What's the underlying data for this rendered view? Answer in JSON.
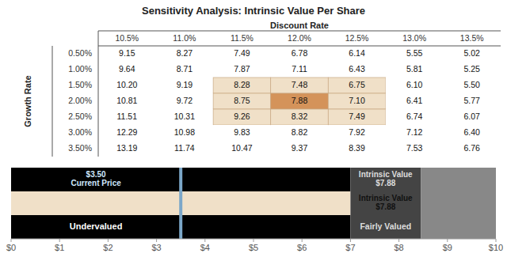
{
  "chart_data": [
    {
      "type": "table",
      "title": "Sensitivity Analysis: Intrinsic Value Per Share",
      "x_label": "Discount Rate",
      "y_label": "Growth Rate",
      "columns": [
        "10.5%",
        "11.0%",
        "11.5%",
        "12.0%",
        "12.5%",
        "13.0%",
        "13.5%"
      ],
      "rows": [
        "0.50%",
        "1.00%",
        "1.50%",
        "2.00%",
        "2.50%",
        "3.00%",
        "3.50%"
      ],
      "cells": [
        [
          9.15,
          8.27,
          7.49,
          6.78,
          6.14,
          5.55,
          5.02
        ],
        [
          9.64,
          8.71,
          7.87,
          7.11,
          6.43,
          5.81,
          5.25
        ],
        [
          10.2,
          9.19,
          8.28,
          7.48,
          6.75,
          6.1,
          5.5
        ],
        [
          10.81,
          9.72,
          8.75,
          7.88,
          7.1,
          6.41,
          5.77
        ],
        [
          11.51,
          10.31,
          9.26,
          8.32,
          7.49,
          6.74,
          6.07
        ],
        [
          12.29,
          10.98,
          9.83,
          8.82,
          7.92,
          7.12,
          6.4
        ],
        [
          13.19,
          11.74,
          10.47,
          9.37,
          8.39,
          7.53,
          6.76
        ]
      ],
      "value_labels": [
        [
          "9.15",
          "8.27",
          "7.49",
          "6.78",
          "6.14",
          "5.55",
          "5.02"
        ],
        [
          "9.64",
          "8.71",
          "7.87",
          "7.11",
          "6.43",
          "5.81",
          "5.25"
        ],
        [
          "10.20",
          "9.19",
          "8.28",
          "7.48",
          "6.75",
          "6.10",
          "5.50"
        ],
        [
          "10.81",
          "9.72",
          "8.75",
          "7.88",
          "7.10",
          "6.41",
          "5.77"
        ],
        [
          "11.51",
          "10.31",
          "9.26",
          "8.32",
          "7.49",
          "6.74",
          "6.07"
        ],
        [
          "12.29",
          "10.98",
          "9.83",
          "8.82",
          "7.92",
          "7.12",
          "6.40"
        ],
        [
          "13.19",
          "11.74",
          "10.47",
          "9.37",
          "8.39",
          "7.53",
          "6.76"
        ]
      ],
      "colors": [
        [
          "#ffffff",
          "#ffffff",
          "#ffffff",
          "#ffffff",
          "#ffffff",
          "#ffffff",
          "#ffffff"
        ],
        [
          "#ffffff",
          "#ffffff",
          "#ffffff",
          "#ffffff",
          "#ffffff",
          "#ffffff",
          "#ffffff"
        ],
        [
          "#ffffff",
          "#ffffff",
          "#f0e0c8",
          "#f0e0c8",
          "#f0e0c8",
          "#ffffff",
          "#ffffff"
        ],
        [
          "#ffffff",
          "#ffffff",
          "#f0e0c8",
          "#d4935a",
          "#f0e0c8",
          "#ffffff",
          "#ffffff"
        ],
        [
          "#ffffff",
          "#ffffff",
          "#f0e0c8",
          "#f0e0c8",
          "#f0e0c8",
          "#ffffff",
          "#ffffff"
        ],
        [
          "#ffffff",
          "#ffffff",
          "#ffffff",
          "#ffffff",
          "#ffffff",
          "#ffffff",
          "#ffffff"
        ],
        [
          "#ffffff",
          "#ffffff",
          "#ffffff",
          "#ffffff",
          "#ffffff",
          "#ffffff",
          "#ffffff"
        ]
      ]
    },
    {
      "type": "bar",
      "orientation": "horizontal",
      "stacked": true,
      "categories": [
        null,
        null,
        null
      ],
      "series": [
        {
          "colors": [
            "#000000",
            "#f0e0c8",
            "#000000"
          ],
          "values": [
            7.0,
            7.0,
            7.0
          ]
        },
        {
          "color": "#444444",
          "values": [
            1.45,
            1.45,
            1.45
          ]
        },
        {
          "color": "#888888",
          "values": [
            1.55,
            1.55,
            1.55
          ]
        }
      ],
      "current_price": {
        "value": 3.5,
        "color": "#7ba7c9"
      },
      "annotations": [
        "$3.50\nCurrent Price",
        "Intrinsic Value\n$7.88",
        "Intrinsic Value\n$7.88",
        "Undervalued",
        "Fairly Valued"
      ],
      "xlim": [
        0,
        10
      ],
      "xticks": [
        {
          "value": 0,
          "label": "$0"
        },
        {
          "value": 1,
          "label": "$1"
        },
        {
          "value": 2,
          "label": "$2"
        },
        {
          "value": 3,
          "label": "$3"
        },
        {
          "value": 4,
          "label": "$4"
        },
        {
          "value": 5,
          "label": "$5"
        },
        {
          "value": 6,
          "label": "$6"
        },
        {
          "value": 7,
          "label": "$7"
        },
        {
          "value": 8,
          "label": "$8"
        },
        {
          "value": 9,
          "label": "$9"
        },
        {
          "value": 10,
          "label": "$10"
        }
      ],
      "grid": false,
      "tick_labels": "x"
    }
  ]
}
